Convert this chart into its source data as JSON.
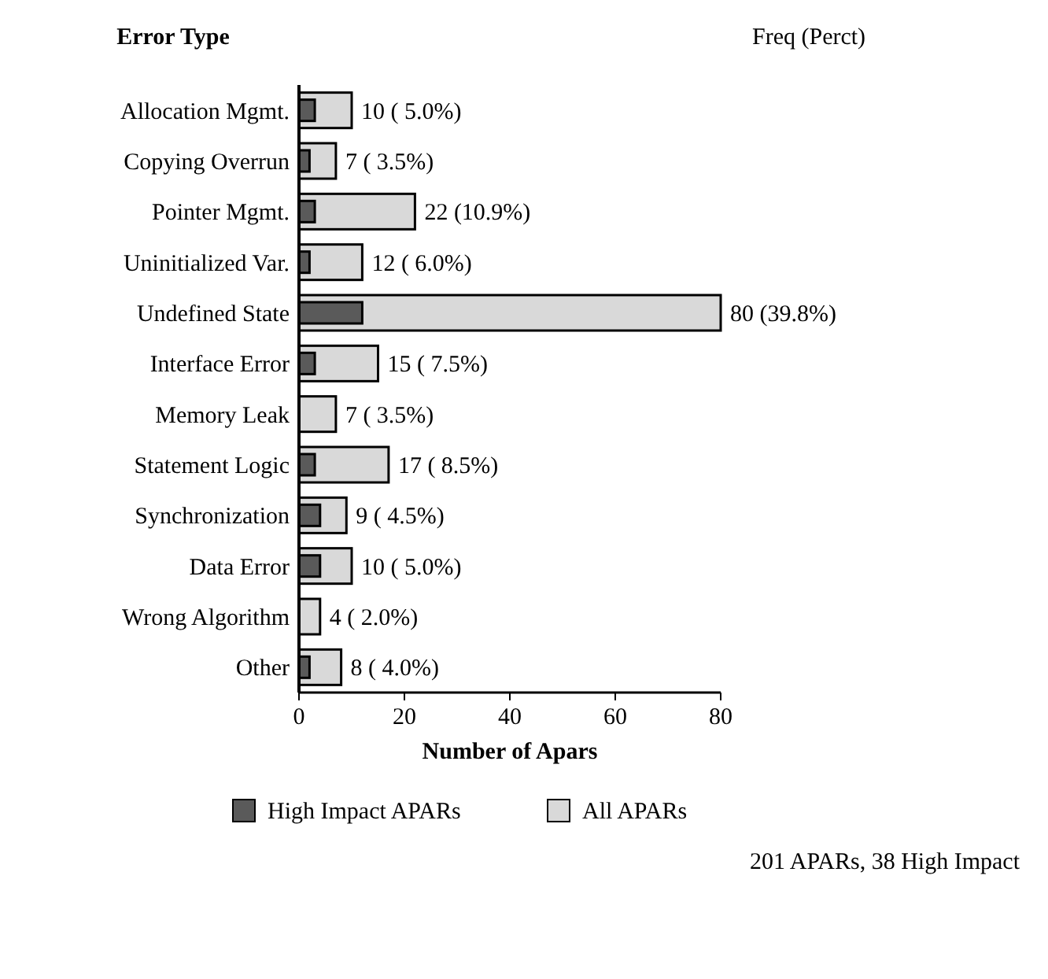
{
  "chart_data": {
    "type": "bar",
    "orientation": "horizontal",
    "ylabel": "Error Type",
    "xlabel": "Number of Apars",
    "categories": [
      "Allocation Mgmt.",
      "Copying Overrun",
      "Pointer Mgmt.",
      "Uninitialized Var.",
      "Undefined State",
      "Interface Error",
      "Memory Leak",
      "Statement Logic",
      "Synchronization",
      "Data Error",
      "Wrong Algorithm",
      "Other"
    ],
    "series": [
      {
        "name": "High Impact APARs",
        "color": "#5a5a5a",
        "values": [
          3,
          2,
          3,
          2,
          12,
          3,
          0,
          3,
          4,
          4,
          0,
          2
        ]
      },
      {
        "name": "All APARs",
        "color": "#d9d9d9",
        "values": [
          10,
          7,
          22,
          12,
          80,
          15,
          7,
          17,
          9,
          10,
          4,
          8
        ],
        "value_labels": [
          "10 ( 5.0%)",
          "7 ( 3.5%)",
          "22 (10.9%)",
          "12 ( 6.0%)",
          "80 (39.8%)",
          "15 ( 7.5%)",
          "7 ( 3.5%)",
          "17 ( 8.5%)",
          "9 ( 4.5%)",
          "10 ( 5.0%)",
          "4 ( 2.0%)",
          "8 ( 4.0%)"
        ]
      }
    ],
    "xlim": [
      0,
      80
    ],
    "xticks": [
      0,
      20,
      40,
      60,
      80
    ],
    "legend": "bottom",
    "grid": false,
    "annotations": [
      "Freq (Perct)",
      "201 APARs, 38 High Impact"
    ]
  }
}
